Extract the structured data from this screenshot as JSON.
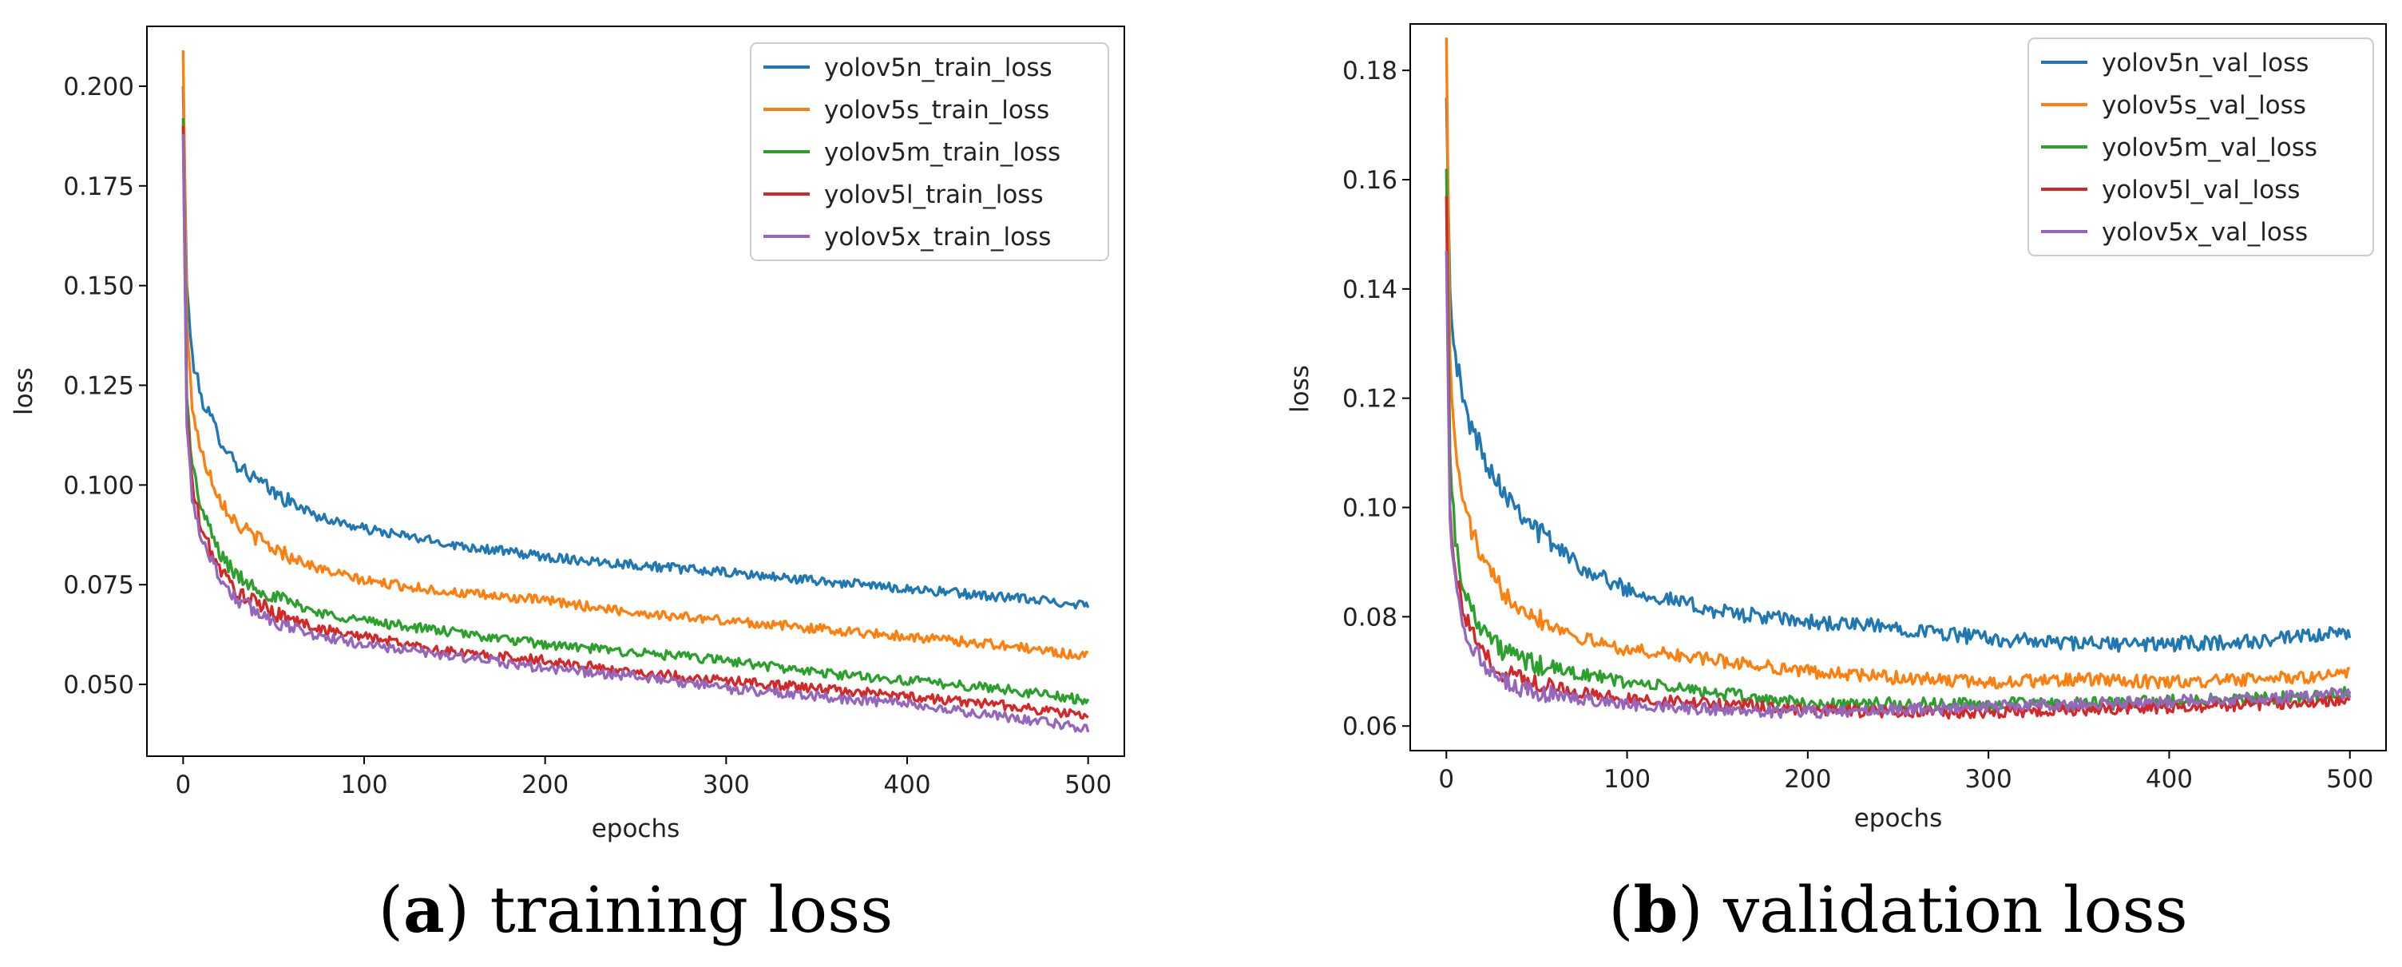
{
  "chart_data": [
    {
      "type": "line",
      "id": "a",
      "caption_letter": "a",
      "caption_text": "training loss",
      "xlabel": "epochs",
      "ylabel": "loss",
      "xlim": [
        -20,
        520
      ],
      "ylim": [
        0.032,
        0.215
      ],
      "xticks": [
        0,
        100,
        200,
        300,
        400,
        500
      ],
      "xtick_labels": [
        "0",
        "100",
        "200",
        "300",
        "400",
        "500"
      ],
      "yticks": [
        0.05,
        0.075,
        0.1,
        0.125,
        0.15,
        0.175,
        0.2
      ],
      "ytick_labels": [
        "0.050",
        "0.075",
        "0.100",
        "0.125",
        "0.150",
        "0.175",
        "0.200"
      ],
      "legend_position": "top-right",
      "x": [
        0,
        2,
        5,
        10,
        20,
        30,
        50,
        75,
        100,
        150,
        200,
        250,
        300,
        350,
        400,
        450,
        500
      ],
      "series": [
        {
          "name": "yolov5n_train_loss",
          "color": "#1f77b4",
          "noise": 0.0012,
          "values": [
            0.2,
            0.15,
            0.132,
            0.122,
            0.112,
            0.105,
            0.098,
            0.092,
            0.089,
            0.085,
            0.082,
            0.08,
            0.078,
            0.076,
            0.074,
            0.072,
            0.07
          ]
        },
        {
          "name": "yolov5s_train_loss",
          "color": "#ff7f0e",
          "noise": 0.0012,
          "values": [
            0.209,
            0.14,
            0.12,
            0.108,
            0.097,
            0.09,
            0.084,
            0.079,
            0.076,
            0.073,
            0.071,
            0.068,
            0.066,
            0.064,
            0.062,
            0.06,
            0.057
          ]
        },
        {
          "name": "yolov5m_train_loss",
          "color": "#2ca02c",
          "noise": 0.0012,
          "values": [
            0.192,
            0.122,
            0.105,
            0.094,
            0.083,
            0.077,
            0.072,
            0.068,
            0.066,
            0.063,
            0.06,
            0.058,
            0.056,
            0.053,
            0.051,
            0.049,
            0.046
          ]
        },
        {
          "name": "yolov5l_train_loss",
          "color": "#d62728",
          "noise": 0.0012,
          "values": [
            0.19,
            0.118,
            0.1,
            0.089,
            0.079,
            0.073,
            0.068,
            0.064,
            0.062,
            0.058,
            0.056,
            0.053,
            0.051,
            0.049,
            0.047,
            0.045,
            0.042
          ]
        },
        {
          "name": "yolov5x_train_loss",
          "color": "#9467bd",
          "noise": 0.0012,
          "values": [
            0.188,
            0.115,
            0.097,
            0.087,
            0.077,
            0.071,
            0.066,
            0.062,
            0.06,
            0.057,
            0.054,
            0.052,
            0.049,
            0.047,
            0.045,
            0.042,
            0.039
          ]
        }
      ]
    },
    {
      "type": "line",
      "id": "b",
      "caption_letter": "b",
      "caption_text": "validation loss",
      "xlabel": "epochs",
      "ylabel": "loss",
      "xlim": [
        -20,
        520
      ],
      "ylim": [
        0.0555,
        0.1885
      ],
      "xticks": [
        0,
        100,
        200,
        300,
        400,
        500
      ],
      "xtick_labels": [
        "0",
        "100",
        "200",
        "300",
        "400",
        "500"
      ],
      "yticks": [
        0.06,
        0.08,
        0.1,
        0.12,
        0.14,
        0.16,
        0.18
      ],
      "ytick_labels": [
        "0.06",
        "0.08",
        "0.10",
        "0.12",
        "0.14",
        "0.16",
        "0.18"
      ],
      "legend_position": "top-right",
      "x": [
        0,
        2,
        5,
        10,
        20,
        30,
        50,
        75,
        100,
        150,
        200,
        250,
        300,
        350,
        400,
        450,
        500
      ],
      "series": [
        {
          "name": "yolov5n_val_loss",
          "color": "#1f77b4",
          "noise": 0.0014,
          "values": [
            0.175,
            0.14,
            0.128,
            0.118,
            0.11,
            0.104,
            0.096,
            0.089,
            0.085,
            0.081,
            0.079,
            0.078,
            0.076,
            0.075,
            0.075,
            0.0755,
            0.077
          ]
        },
        {
          "name": "yolov5s_val_loss",
          "color": "#ff7f0e",
          "noise": 0.0012,
          "values": [
            0.186,
            0.128,
            0.11,
            0.1,
            0.09,
            0.085,
            0.08,
            0.076,
            0.074,
            0.072,
            0.07,
            0.0688,
            0.068,
            0.0685,
            0.068,
            0.0685,
            0.0695
          ]
        },
        {
          "name": "yolov5m_val_loss",
          "color": "#2ca02c",
          "noise": 0.0012,
          "values": [
            0.162,
            0.11,
            0.094,
            0.084,
            0.078,
            0.074,
            0.071,
            0.0695,
            0.068,
            0.066,
            0.064,
            0.064,
            0.064,
            0.064,
            0.0645,
            0.065,
            0.066
          ]
        },
        {
          "name": "yolov5l_val_loss",
          "color": "#d62728",
          "noise": 0.0011,
          "values": [
            0.157,
            0.1,
            0.088,
            0.08,
            0.073,
            0.07,
            0.068,
            0.066,
            0.065,
            0.064,
            0.063,
            0.0625,
            0.0625,
            0.063,
            0.0635,
            0.064,
            0.065
          ]
        },
        {
          "name": "yolov5x_val_loss",
          "color": "#9467bd",
          "noise": 0.0011,
          "values": [
            0.147,
            0.098,
            0.086,
            0.078,
            0.071,
            0.068,
            0.066,
            0.065,
            0.064,
            0.063,
            0.0625,
            0.063,
            0.0635,
            0.064,
            0.0645,
            0.065,
            0.066
          ]
        }
      ]
    }
  ]
}
